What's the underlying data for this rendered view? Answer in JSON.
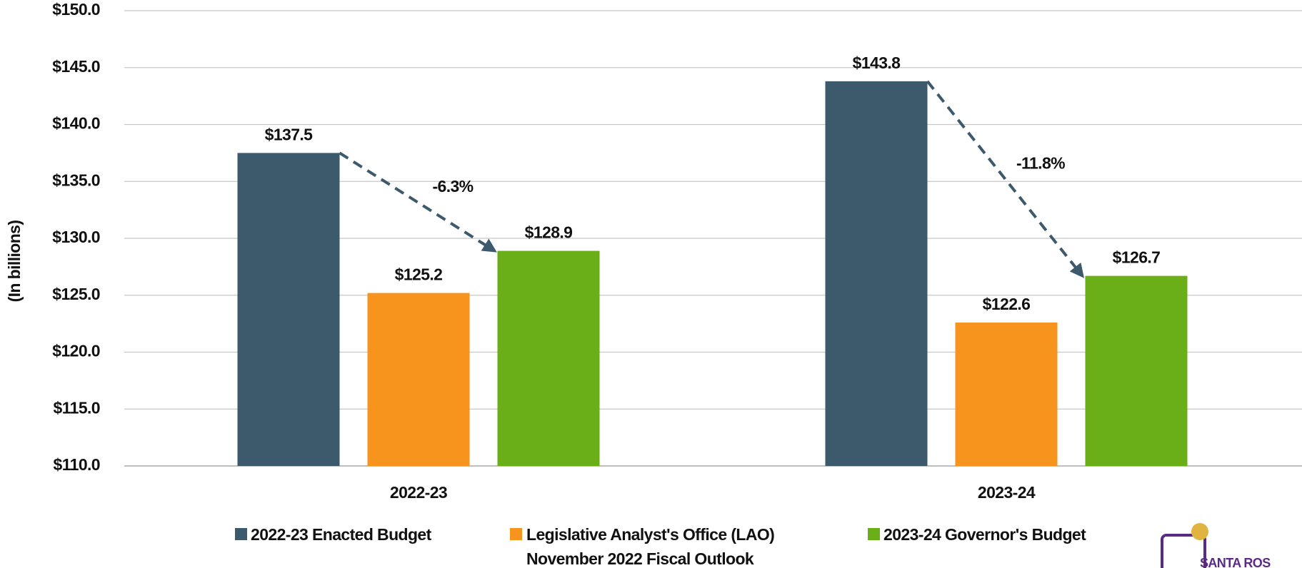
{
  "chart_data": {
    "type": "bar",
    "y_label": "(In billions)",
    "categories": [
      "2022-23",
      "2023-24"
    ],
    "series": [
      {
        "name": "2022-23 Enacted Budget",
        "color": "#3d596c",
        "values": [
          137.5,
          143.8
        ],
        "value_labels": [
          "$137.5",
          "$143.8"
        ]
      },
      {
        "name": "Legislative Analyst's Office (LAO)\nNovember 2022 Fiscal Outlook",
        "color": "#f7941d",
        "values": [
          125.2,
          122.6
        ],
        "value_labels": [
          "$125.2",
          "$122.6"
        ]
      },
      {
        "name": "2023-24 Governor's Budget",
        "color": "#6aaf18",
        "values": [
          128.9,
          126.7
        ],
        "value_labels": [
          "$128.9",
          "$126.7"
        ]
      }
    ],
    "annotations": [
      "-6.3%",
      "-11.8%"
    ],
    "ylim": [
      110,
      150
    ],
    "yticks": [
      {
        "value": 110,
        "label": "$110.0"
      },
      {
        "value": 115,
        "label": "$115.0"
      },
      {
        "value": 120,
        "label": "$120.0"
      },
      {
        "value": 125,
        "label": "$125.0"
      },
      {
        "value": 130,
        "label": "$130.0"
      },
      {
        "value": 135,
        "label": "$135.0"
      },
      {
        "value": 140,
        "label": "$140.0"
      },
      {
        "value": 145,
        "label": "$145.0"
      },
      {
        "value": 150,
        "label": "$150.0"
      }
    ],
    "grid": true,
    "legend": "bottom",
    "logo_text": "SANTA ROS"
  }
}
